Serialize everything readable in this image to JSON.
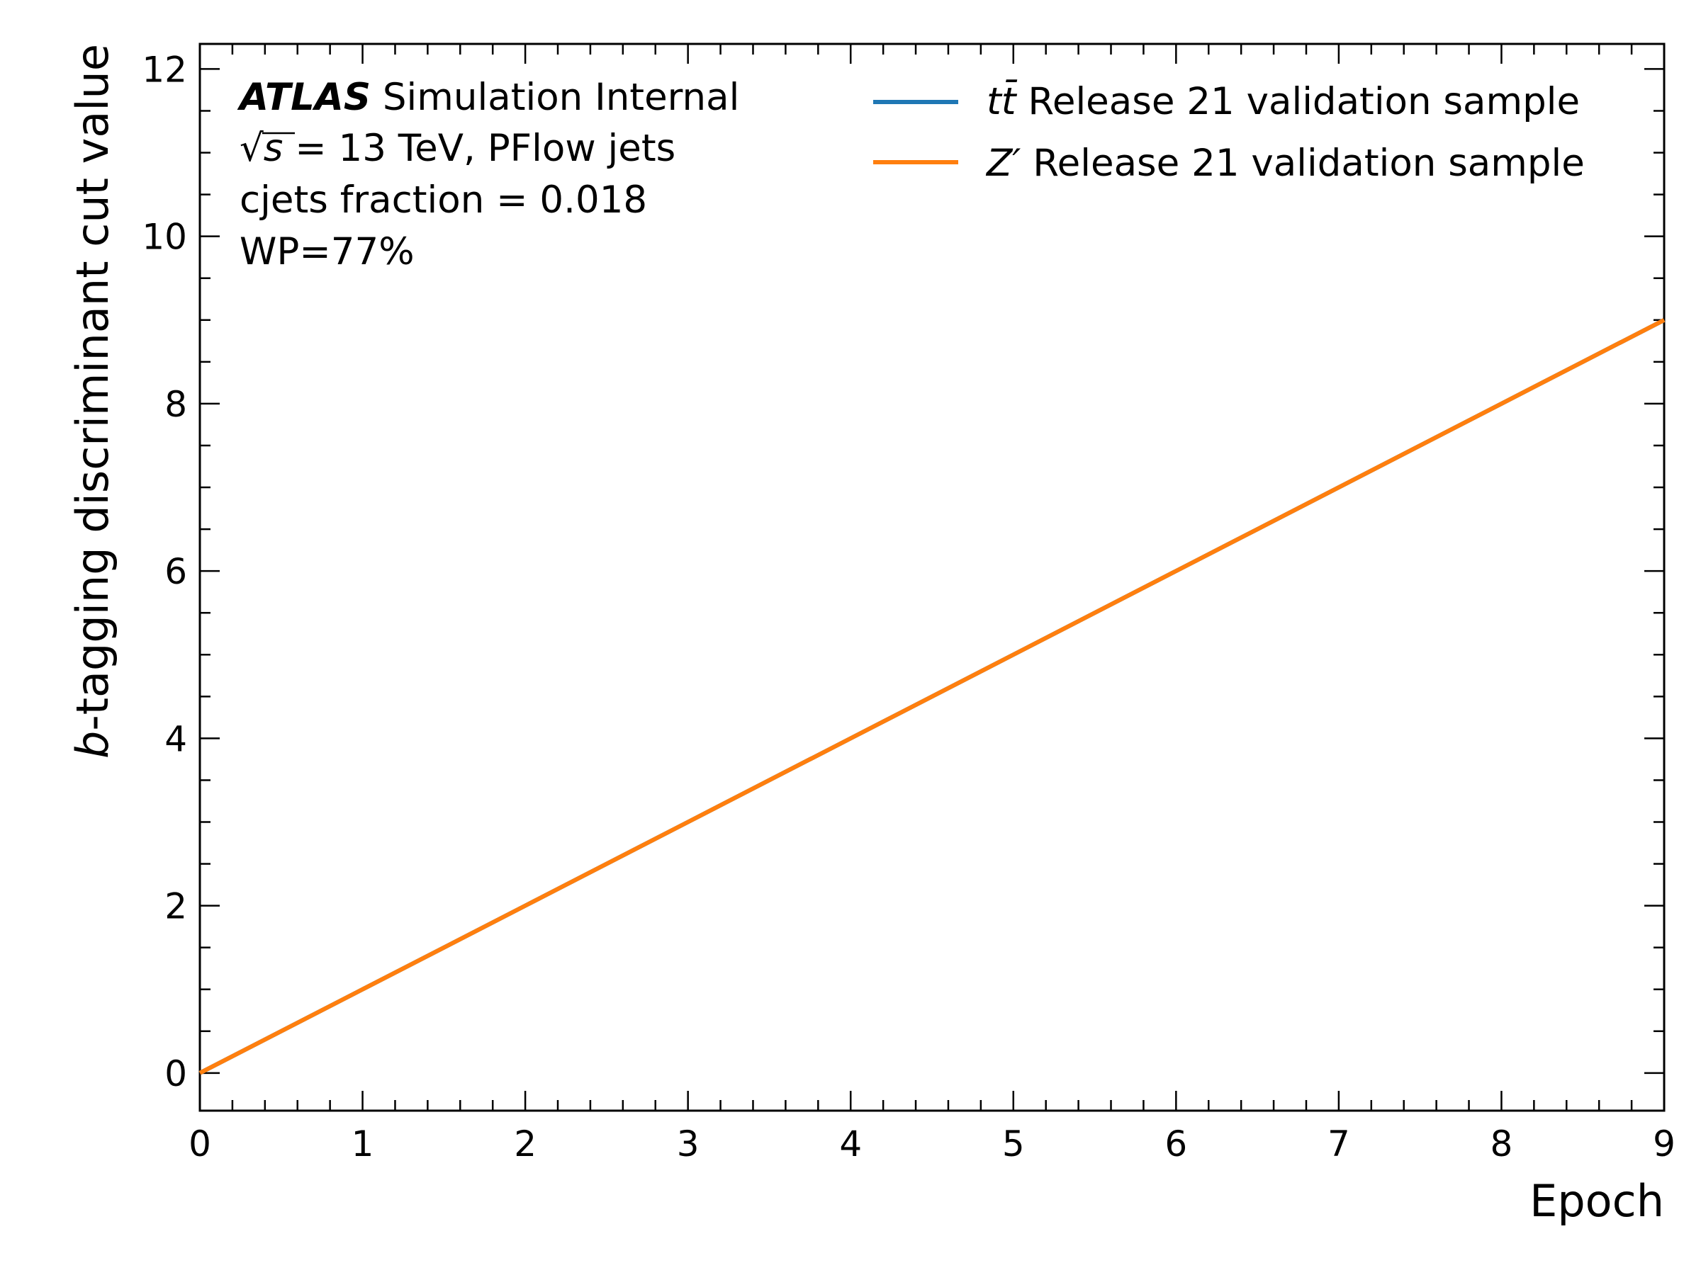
{
  "chart_data": {
    "type": "line",
    "xlabel": "Epoch",
    "ylabel_italic": "b",
    "ylabel_rest": "-tagging discriminant cut value",
    "xlim": [
      0,
      9
    ],
    "ylim": [
      -0.45,
      12.3
    ],
    "xticks": [
      0,
      1,
      2,
      3,
      4,
      5,
      6,
      7,
      8,
      9
    ],
    "yticks": [
      0,
      2,
      4,
      6,
      8,
      10,
      12
    ],
    "grid": false,
    "legend_position": "top-right",
    "series": [
      {
        "name_italic": "tt̄",
        "name_rest": " Release 21 validation sample",
        "color": "#1f77b4",
        "x": [
          0,
          1,
          2,
          3,
          4,
          5,
          6,
          7,
          8,
          9
        ],
        "y": [
          0,
          1,
          2,
          3,
          4,
          5,
          6,
          7,
          8,
          9
        ]
      },
      {
        "name_italic": "Z′",
        "name_rest": " Release 21 validation sample",
        "color": "#ff7f0e",
        "x": [
          0,
          1,
          2,
          3,
          4,
          5,
          6,
          7,
          8,
          9
        ],
        "y": [
          0,
          1,
          2,
          3,
          4,
          5,
          6,
          7,
          8,
          9
        ]
      }
    ],
    "annotations": {
      "experiment": "ATLAS",
      "status": " Simulation Internal",
      "energy_sqrt": "√",
      "energy_s": "s",
      "energy_rest": " = 13 TeV, PFlow jets",
      "fraction": "cjets fraction = 0.018",
      "wp": "WP=77%"
    }
  }
}
